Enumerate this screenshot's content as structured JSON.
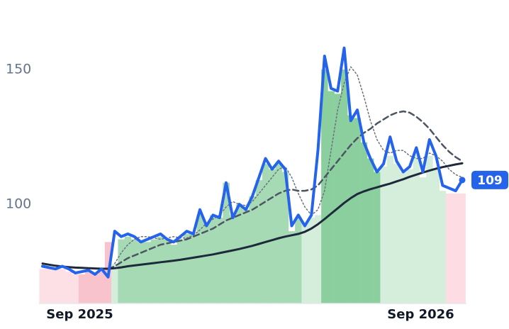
{
  "chart_data": {
    "type": "line",
    "categories": [
      null,
      null,
      null,
      null,
      null,
      null,
      "Sep 2025",
      null,
      null,
      null,
      null,
      null,
      null,
      null,
      null,
      null,
      null,
      null,
      null,
      null,
      null,
      null,
      null,
      null,
      null,
      null,
      null,
      null,
      null,
      null,
      null,
      null,
      null,
      null,
      null,
      null,
      null,
      null,
      null,
      null,
      null,
      null,
      null,
      null,
      null,
      null,
      null,
      null,
      null,
      null,
      null,
      null,
      null,
      null,
      null,
      null,
      null,
      null,
      "Sep 2026",
      null,
      null,
      null,
      null,
      null,
      null
    ],
    "ylim": [
      63.2,
      175.8
    ],
    "yticks": [
      100,
      150
    ],
    "bars": {
      "values": [
        76,
        76,
        76,
        76,
        75,
        74,
        74,
        75,
        74,
        75,
        86,
        78,
        87,
        88,
        87,
        86,
        86,
        87,
        88,
        87,
        85,
        87,
        89,
        89,
        96,
        93,
        96,
        95,
        108,
        96,
        100,
        98,
        103,
        109,
        115,
        113,
        115,
        112,
        90,
        95,
        93,
        95,
        96,
        150,
        142,
        141,
        150,
        133,
        132,
        123,
        117,
        112,
        114,
        118,
        115,
        112,
        113,
        119,
        110,
        118,
        113,
        105,
        104,
        104,
        104
      ],
      "colors": [
        "#fde0e6",
        "#fde0e6",
        "#fde0e6",
        "#fde0e6",
        "#fde0e6",
        "#fde0e6",
        "#f9c3cd",
        "#f9c3cd",
        "#f9c3cd",
        "#f9c3cd",
        "#f9c3cd",
        "#d5eedc",
        "#a6dab4",
        "#a6dab4",
        "#a6dab4",
        "#a6dab4",
        "#a6dab4",
        "#a6dab4",
        "#a6dab4",
        "#a6dab4",
        "#a6dab4",
        "#a6dab4",
        "#a6dab4",
        "#a6dab4",
        "#a6dab4",
        "#a6dab4",
        "#a6dab4",
        "#a6dab4",
        "#a6dab4",
        "#a6dab4",
        "#a6dab4",
        "#a6dab4",
        "#a6dab4",
        "#a6dab4",
        "#a6dab4",
        "#a6dab4",
        "#a6dab4",
        "#a6dab4",
        "#a6dab4",
        "#a6dab4",
        "#d5eedc",
        "#d5eedc",
        "#d5eedc",
        "#8ccf9e",
        "#8ccf9e",
        "#8ccf9e",
        "#8ccf9e",
        "#8ccf9e",
        "#8ccf9e",
        "#8ccf9e",
        "#8ccf9e",
        "#8ccf9e",
        "#d5eedc",
        "#d5eedc",
        "#d5eedc",
        "#d5eedc",
        "#d5eedc",
        "#d5eedc",
        "#d5eedc",
        "#d5eedc",
        "#d5eedc",
        "#d5eedc",
        "#fddde3",
        "#fddde3",
        "#fddde3"
      ]
    },
    "series": [
      {
        "color": "#6b7280",
        "style": "dotted",
        "width": 1.5,
        "values": [
          null,
          null,
          null,
          null,
          null,
          null,
          null,
          null,
          null,
          null,
          null,
          78,
          82,
          85,
          87,
          88,
          88,
          87.5,
          87,
          87.5,
          88,
          87.5,
          87.5,
          88.5,
          90.5,
          93,
          94.5,
          96,
          99,
          101,
          100,
          99.5,
          101,
          104,
          107,
          110,
          113,
          114,
          110,
          104,
          99,
          96,
          98,
          105,
          120,
          135,
          145,
          151,
          148,
          140,
          131,
          124,
          120,
          119,
          120,
          120,
          118,
          117,
          117,
          119,
          118,
          116,
          113,
          111,
          110
        ]
      },
      {
        "color": "#4b5563",
        "style": "dashed",
        "width": 2.5,
        "values": [
          null,
          null,
          null,
          null,
          null,
          null,
          null,
          null,
          null,
          null,
          76,
          77,
          78.5,
          80,
          81,
          82,
          83,
          84,
          85,
          85.5,
          86,
          86.5,
          87,
          88,
          89,
          90,
          91,
          92.5,
          94,
          95,
          96,
          97,
          98,
          99.5,
          101,
          102.5,
          104,
          105,
          105.5,
          105,
          105,
          105.5,
          107,
          110,
          113,
          116,
          119,
          122,
          124.5,
          126.5,
          128,
          130,
          131.5,
          133,
          134,
          134.5,
          134,
          132.5,
          130.5,
          128,
          125,
          122,
          119.5,
          117.5,
          116
        ]
      },
      {
        "color": "#1e293b",
        "style": "solid",
        "width": 3,
        "values": [
          78,
          77.6,
          77.2,
          76.9,
          76.7,
          76.5,
          76.4,
          76.3,
          76.2,
          76.1,
          76.1,
          76.3,
          76.6,
          77,
          77.3,
          77.6,
          77.9,
          78.2,
          78.5,
          78.8,
          79.1,
          79.4,
          79.8,
          80.2,
          80.6,
          81,
          81.4,
          81.9,
          82.4,
          82.9,
          83.4,
          84,
          84.6,
          85.3,
          86,
          86.7,
          87.4,
          88,
          88.5,
          89,
          89.8,
          91,
          92.6,
          94.5,
          96.5,
          98.5,
          100.5,
          102.3,
          103.8,
          104.8,
          105.6,
          106.3,
          107,
          107.7,
          108.5,
          109.3,
          110.2,
          111,
          111.8,
          112.5,
          113.2,
          113.8,
          114.3,
          114.8,
          115.2
        ]
      },
      {
        "color": "#2563eb",
        "style": "solid",
        "width": 4,
        "values": [
          77,
          76.5,
          76,
          77,
          76,
          74.5,
          75,
          75.5,
          74,
          76,
          73,
          90,
          88,
          89,
          88,
          86,
          87,
          88,
          89,
          87,
          86,
          88,
          90,
          89,
          98,
          92,
          96,
          95,
          108,
          95,
          100,
          98,
          103,
          110,
          117,
          113,
          116,
          113,
          92,
          96,
          92,
          96,
          120,
          155,
          143,
          142,
          158,
          131,
          135,
          123,
          117,
          112,
          115,
          125,
          116,
          112,
          114,
          121,
          112,
          124,
          118,
          107,
          106,
          105,
          109
        ]
      }
    ]
  }
}
